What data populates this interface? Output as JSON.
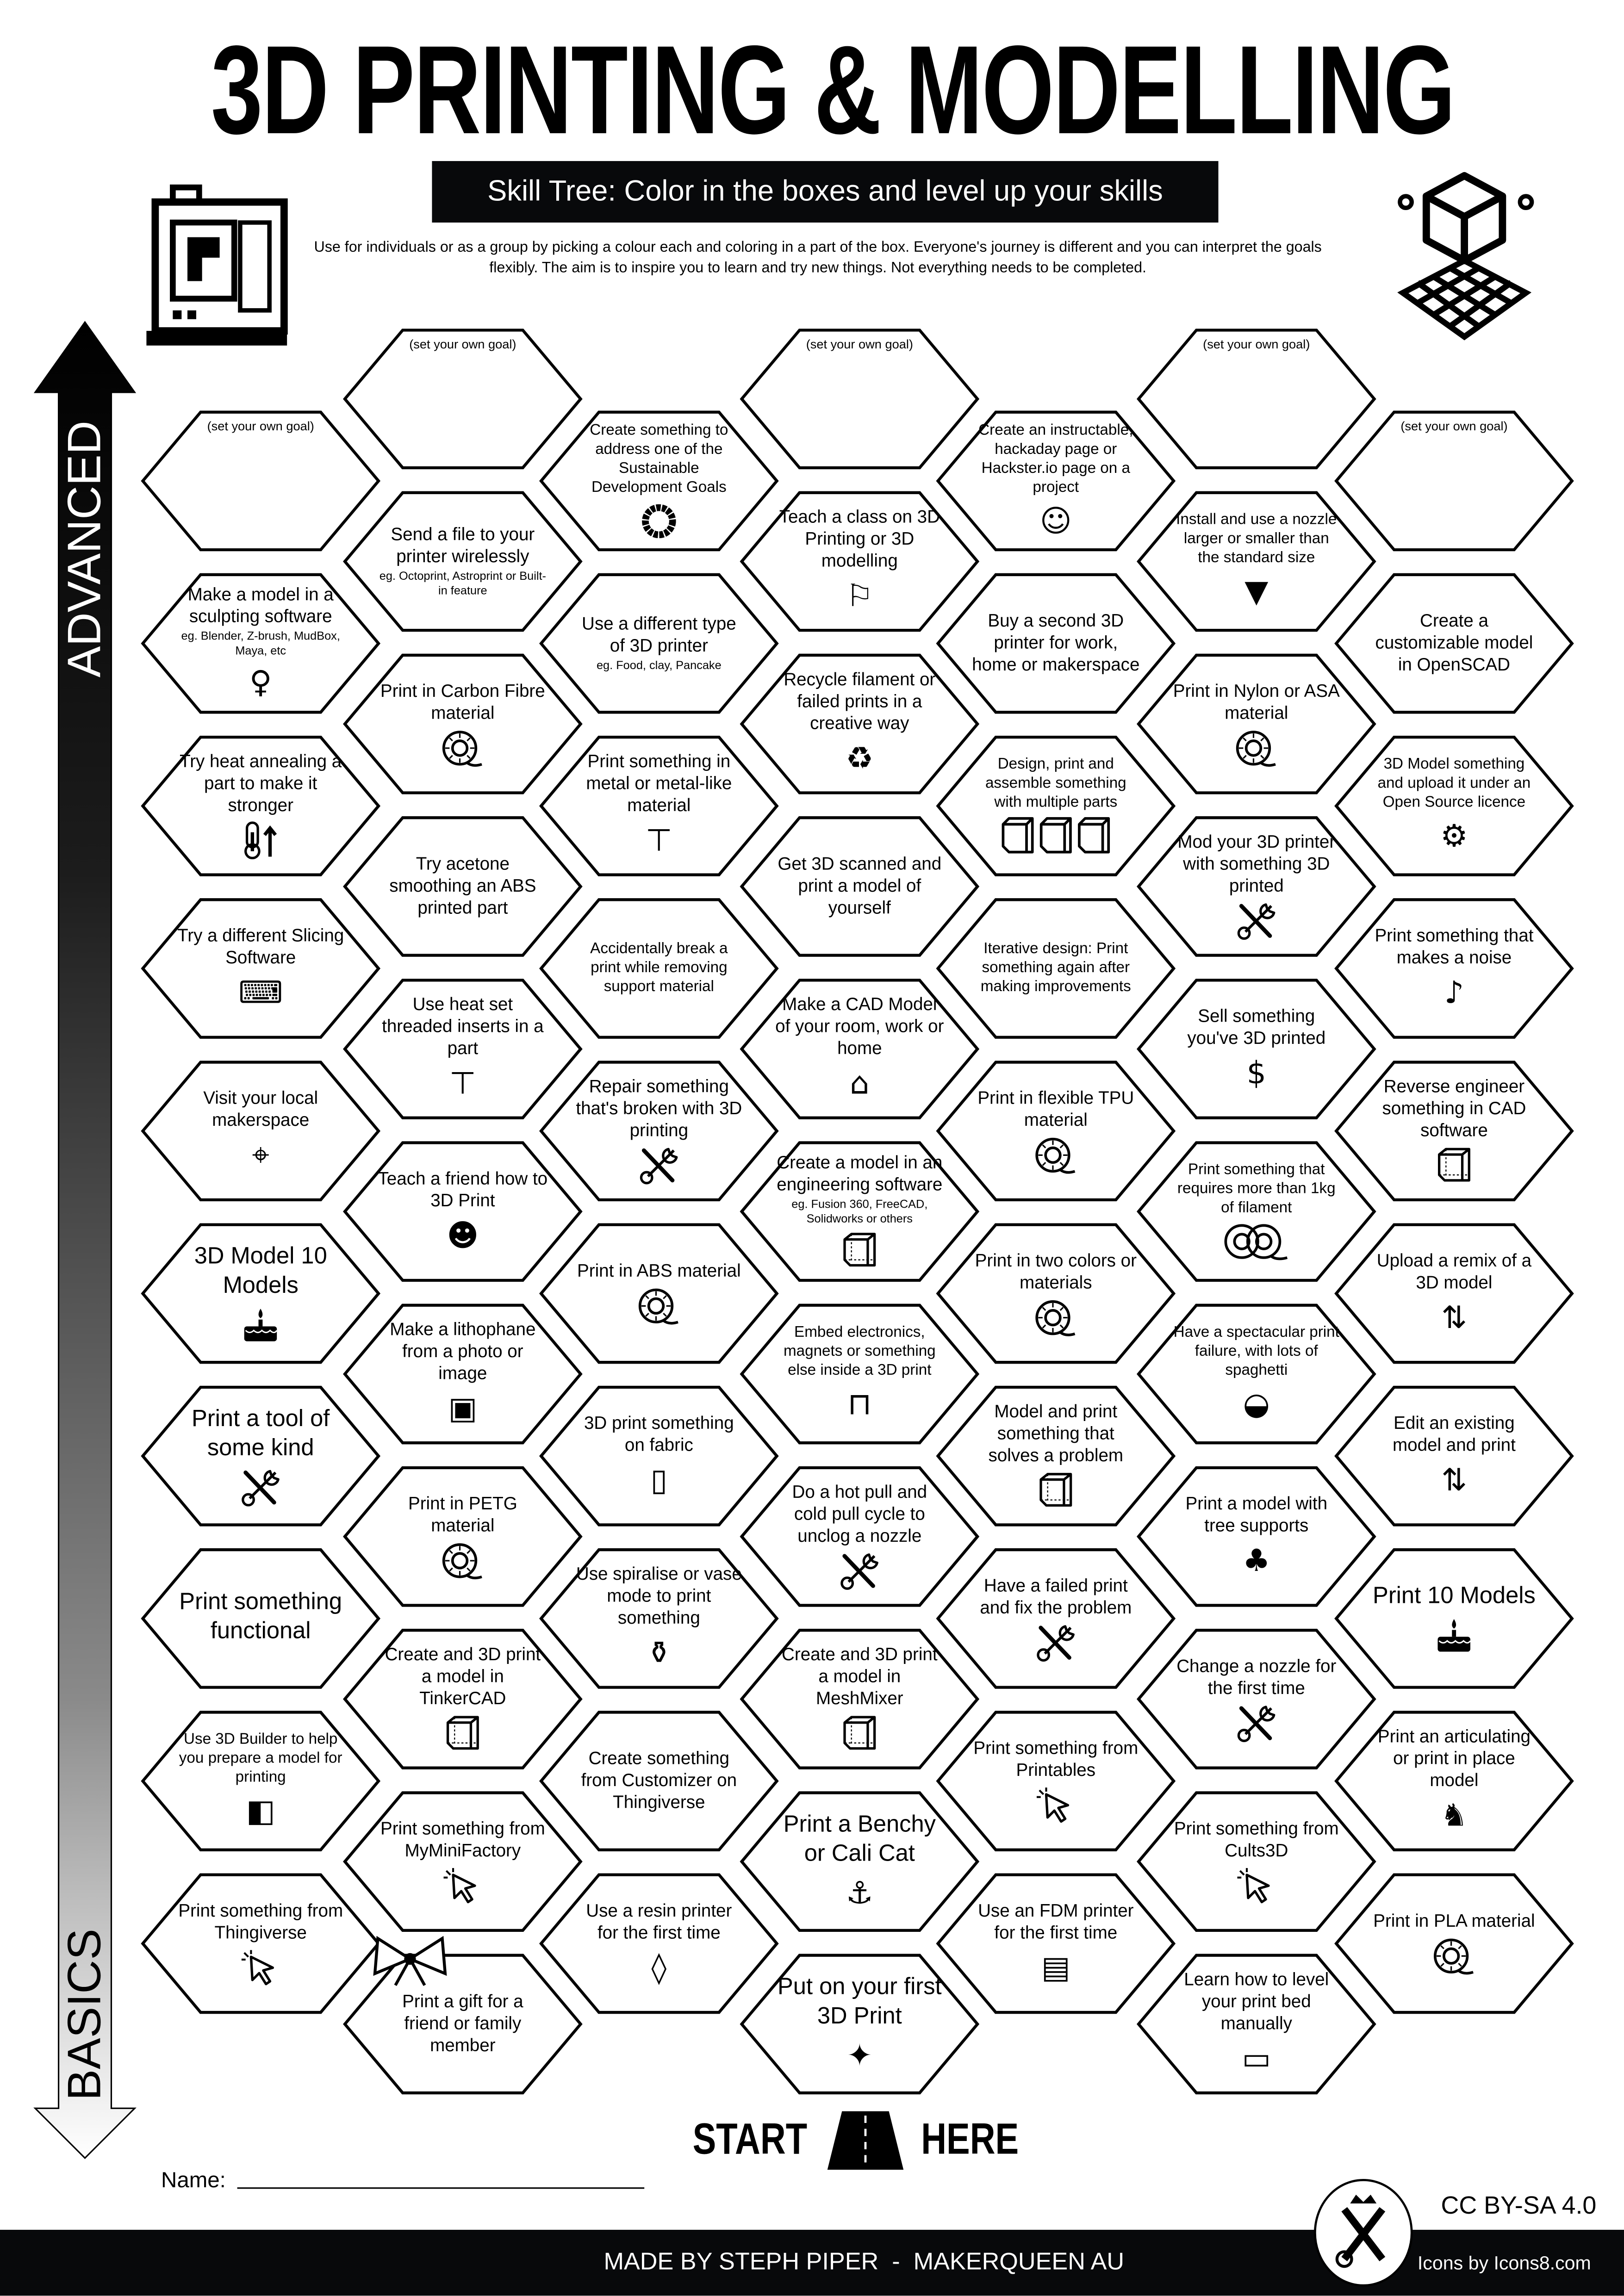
{
  "header": {
    "title": "3D PRINTING & MODELLING",
    "subtitle": "Skill Tree:  Color in the boxes and level up your skills",
    "description": "Use for individuals or as a group by picking a colour each and coloring in a part of the box.  Everyone's journey is different and you can interpret the goals flexibly.  The aim is to inspire you to learn and try new things. Not everything needs to be completed.",
    "left_icon": "3d-printer-icon",
    "right_icon": "cube-on-grid-icon"
  },
  "progress_axis": {
    "top_label": "ADVANCED",
    "bottom_label": "BASICS"
  },
  "columns": [
    [
      {
        "text": "(set your own goal)",
        "goal": true
      },
      {
        "text": "Make a model in a sculpting software",
        "sub": "eg. Blender, Z-brush, MudBox, Maya, etc",
        "icon": "statue"
      },
      {
        "text": "Try heat annealing a part to make it stronger",
        "icon": "thermometer-up"
      },
      {
        "text": "Try a different Slicing Software",
        "icon": "laptop-gear"
      },
      {
        "text": "Visit your local makerspace",
        "icon": "map-pin"
      },
      {
        "text": "3D Model 10 Models",
        "icon": "cake",
        "milestone": true
      },
      {
        "text": "Print a tool of some kind",
        "icon": "tools",
        "milestone": true
      },
      {
        "text": "Print something functional",
        "milestone": true
      },
      {
        "text": "Use 3D Builder to help you prepare a model for printing",
        "icon": "3d-builder"
      },
      {
        "text": "Print something from Thingiverse",
        "icon": "cursor"
      }
    ],
    [
      {
        "text": "(set your own goal)",
        "goal": true
      },
      {
        "text": "Send a file to your printer wirelessly",
        "sub": "eg. Octoprint, Astroprint or Built-in feature"
      },
      {
        "text": "Print in Carbon Fibre material",
        "icon": "spool"
      },
      {
        "text": "Try acetone smoothing an ABS printed part"
      },
      {
        "text": "Use heat set threaded inserts in a part",
        "icon": "screw"
      },
      {
        "text": "Teach a friend how to 3D Print",
        "icon": "teach-friend"
      },
      {
        "text": "Make a lithophane from a photo or image",
        "icon": "picture"
      },
      {
        "text": "Print in PETG material",
        "icon": "spool"
      },
      {
        "text": "Create and 3D print a model in TinkerCAD",
        "icon": "cube"
      },
      {
        "text": "Print something from MyMiniFactory",
        "icon": "cursor"
      },
      {
        "text": "Print a gift for a friend or family member"
      }
    ],
    [
      {
        "text": "Create something to address one of the Sustainable Development Goals",
        "icon": "sdg-wheel"
      },
      {
        "text": "Use a different type of 3D printer",
        "sub": "eg. Food, clay, Pancake"
      },
      {
        "text": "Print something in metal or metal-like material",
        "icon": "anvil"
      },
      {
        "text": "Accidentally break a print while removing support material"
      },
      {
        "text": "Repair something that's broken with 3D printing",
        "icon": "tools"
      },
      {
        "text": "Print in ABS material",
        "icon": "spool"
      },
      {
        "text": "3D print something on fabric",
        "icon": "fabric"
      },
      {
        "text": "Use spiralise or vase mode to print something",
        "icon": "vase"
      },
      {
        "text": "Create something from Customizer on Thingiverse"
      },
      {
        "text": "Use a resin printer for the first time",
        "icon": "drop"
      }
    ],
    [
      {
        "text": "(set your own goal)",
        "goal": true
      },
      {
        "text": "Teach a class on 3D Printing or 3D modelling",
        "icon": "teacher"
      },
      {
        "text": "Recycle filament or failed prints in a creative way",
        "icon": "recycle"
      },
      {
        "text": "Get 3D scanned and print a model of yourself"
      },
      {
        "text": "Make a CAD Model of your room, work or home",
        "icon": "house"
      },
      {
        "text": "Create a model in an engineering software",
        "sub": "eg. Fusion 360, FreeCAD, Solidworks or others",
        "icon": "cube"
      },
      {
        "text": "Embed electronics, magnets or something else inside a 3D print",
        "icon": "led"
      },
      {
        "text": "Do a hot pull and cold pull cycle to unclog a nozzle",
        "icon": "tools"
      },
      {
        "text": "Create and 3D print a model in MeshMixer",
        "icon": "cube"
      },
      {
        "text": "Print a Benchy or Cali Cat",
        "icon": "boat",
        "milestone": true
      },
      {
        "text": "Put on your first 3D Print",
        "icon": "party-popper",
        "milestone": true
      }
    ],
    [
      {
        "text": "Create an instructable, hackaday page or Hackster.io page on a project",
        "icon": "document-smile"
      },
      {
        "text": "Buy a second 3D printer for work, home or makerspace"
      },
      {
        "text": "Design, print and assemble something with multiple parts",
        "icon": "cubes"
      },
      {
        "text": "Iterative design: Print something again after making improvements"
      },
      {
        "text": "Print in flexible TPU material",
        "icon": "spool"
      },
      {
        "text": "Print in two colors or materials",
        "icon": "spool"
      },
      {
        "text": "Model and print something that solves a problem",
        "icon": "cube"
      },
      {
        "text": "Have a failed print and fix the problem",
        "icon": "tools"
      },
      {
        "text": "Print something from Printables",
        "icon": "cursor"
      },
      {
        "text": "Use an FDM printer for the first time",
        "icon": "printer"
      }
    ],
    [
      {
        "text": "(set your own goal)",
        "goal": true
      },
      {
        "text": "Install and use a nozzle larger or smaller than the standard size",
        "icon": "nozzle"
      },
      {
        "text": "Print in Nylon or ASA material",
        "icon": "spool"
      },
      {
        "text": "Mod your 3D printer with something 3D printed",
        "icon": "tools"
      },
      {
        "text": "Sell something you've 3D printed",
        "icon": "money-bag"
      },
      {
        "text": "Print something that requires more than 1kg of filament",
        "icon": "spools"
      },
      {
        "text": "Have a spectacular print failure, with lots of spaghetti",
        "icon": "spaghetti-bowl"
      },
      {
        "text": "Print a model with tree supports",
        "icon": "tree"
      },
      {
        "text": "Change a nozzle for the first time",
        "icon": "tools"
      },
      {
        "text": "Print something from Cults3D",
        "icon": "cursor"
      },
      {
        "text": "Learn how to level your print bed manually",
        "icon": "ruler"
      }
    ],
    [
      {
        "text": "(set your own goal)",
        "goal": true
      },
      {
        "text": "Create a customizable model in OpenSCAD"
      },
      {
        "text": "3D Model something and upload it under an Open Source licence",
        "icon": "gear"
      },
      {
        "text": "Print something that makes a noise",
        "icon": "whistle"
      },
      {
        "text": "Reverse engineer something in CAD software",
        "icon": "cube"
      },
      {
        "text": "Upload a remix of a 3D model",
        "icon": "remix"
      },
      {
        "text": "Edit an existing model and print",
        "icon": "remix"
      },
      {
        "text": "Print 10 Models",
        "icon": "cake",
        "milestone": true
      },
      {
        "text": "Print an articulating or print in place model",
        "icon": "dragon"
      },
      {
        "text": "Print in PLA material",
        "icon": "spool"
      }
    ]
  ],
  "start": {
    "left": "START",
    "right": "HERE",
    "icon": "road-icon"
  },
  "name_field": {
    "label": "Name:",
    "value": ""
  },
  "footer": {
    "credit": "MADE BY STEPH PIPER  -  MAKERQUEEN AU",
    "license": "CC BY-SA 4.0",
    "icons_credit": "Icons by Icons8.com",
    "logo_icon": "makerqueen-logo"
  },
  "colors": {
    "ink": "#000000",
    "bar": "#08090b",
    "paper": "#ffffff"
  }
}
